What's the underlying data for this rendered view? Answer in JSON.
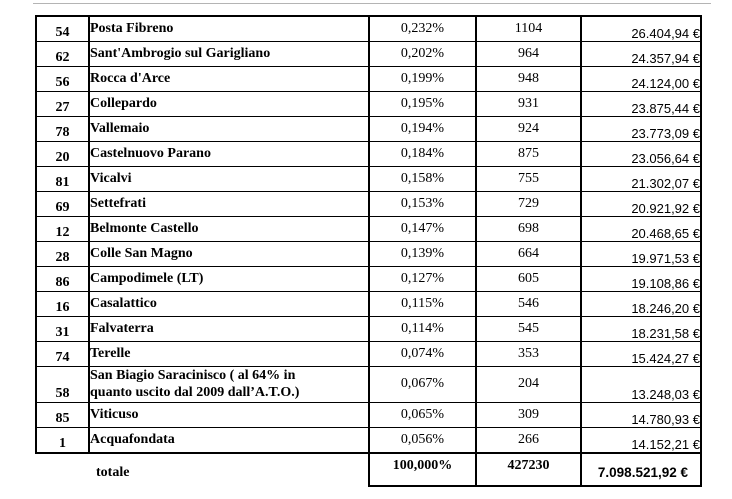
{
  "page": {
    "background_color": "#ffffff",
    "border_color": "#000000"
  },
  "table": {
    "rows": [
      {
        "id": "54",
        "name": "Posta Fibreno",
        "percent": "0,232%",
        "count": "1104",
        "amount": "26.404,94 €"
      },
      {
        "id": "62",
        "name": "Sant'Ambrogio sul Garigliano",
        "percent": "0,202%",
        "count": "964",
        "amount": "24.357,94 €"
      },
      {
        "id": "56",
        "name": "Rocca d'Arce",
        "percent": "0,199%",
        "count": "948",
        "amount": "24.124,00 €"
      },
      {
        "id": "27",
        "name": "Collepardo",
        "percent": "0,195%",
        "count": "931",
        "amount": "23.875,44 €"
      },
      {
        "id": "78",
        "name": "Vallemaio",
        "percent": "0,194%",
        "count": "924",
        "amount": "23.773,09 €"
      },
      {
        "id": "20",
        "name": "Castelnuovo Parano",
        "percent": "0,184%",
        "count": "875",
        "amount": "23.056,64 €"
      },
      {
        "id": "81",
        "name": "Vicalvi",
        "percent": "0,158%",
        "count": "755",
        "amount": "21.302,07 €"
      },
      {
        "id": "69",
        "name": "Settefrati",
        "percent": "0,153%",
        "count": "729",
        "amount": "20.921,92 €"
      },
      {
        "id": "12",
        "name": "Belmonte Castello",
        "percent": "0,147%",
        "count": "698",
        "amount": "20.468,65 €"
      },
      {
        "id": "28",
        "name": "Colle San Magno",
        "percent": "0,139%",
        "count": "664",
        "amount": "19.971,53 €"
      },
      {
        "id": "86",
        "name": "Campodimele (LT)",
        "percent": "0,127%",
        "count": "605",
        "amount": "19.108,86 €"
      },
      {
        "id": "16",
        "name": "Casalattico",
        "percent": "0,115%",
        "count": "546",
        "amount": "18.246,20 €"
      },
      {
        "id": "31",
        "name": "Falvaterra",
        "percent": "0,114%",
        "count": "545",
        "amount": "18.231,58 €"
      },
      {
        "id": "74",
        "name": "Terelle",
        "percent": "0,074%",
        "count": "353",
        "amount": "15.424,27 €"
      },
      {
        "id": "58",
        "name": "San Biagio Saracinisco ( al 64% in\nquanto uscito dal 2009  dall’A.T.O.)",
        "percent": "0,067%",
        "count": "204",
        "amount": "13.248,03 €"
      },
      {
        "id": "85",
        "name": "Viticuso",
        "percent": "0,065%",
        "count": "309",
        "amount": "14.780,93 €"
      },
      {
        "id": "1",
        "name": "Acquafondata",
        "percent": "0,056%",
        "count": "266",
        "amount": "14.152,21 €"
      }
    ],
    "total": {
      "label": "totale",
      "percent": "100,000%",
      "count": "427230",
      "amount": "7.098.521,92 €"
    }
  }
}
